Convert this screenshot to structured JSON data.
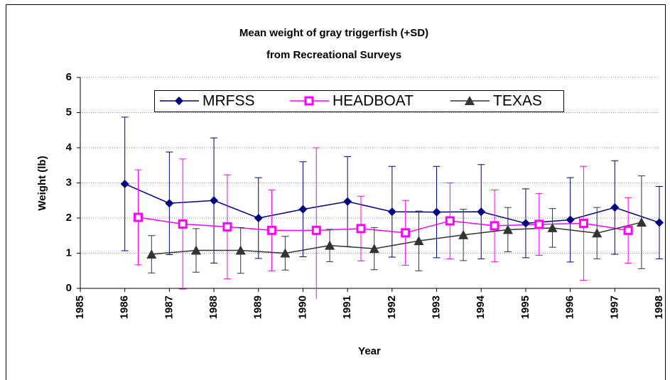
{
  "chart_data": {
    "type": "line",
    "title": "Mean weight of gray triggerfish (+SD)",
    "subtitle": "from Recreational Surveys",
    "x_label": "Year",
    "y_label": "Weight (lb)",
    "xlim": [
      1985,
      1998
    ],
    "xticks": [
      1985,
      1986,
      1987,
      1988,
      1989,
      1990,
      1991,
      1992,
      1993,
      1994,
      1995,
      1996,
      1997,
      1998
    ],
    "ylim": [
      0,
      6
    ],
    "yticks": [
      0,
      1,
      2,
      3,
      4,
      5,
      6
    ],
    "grid": true,
    "legend": "top",
    "series": [
      {
        "name": "MRFSS",
        "color": "#000080",
        "marker": "diamond",
        "x": [
          1986,
          1987,
          1988,
          1989,
          1990,
          1991,
          1992,
          1993,
          1994,
          1995,
          1996,
          1997,
          1998
        ],
        "values": [
          2.97,
          2.42,
          2.5,
          2.0,
          2.25,
          2.47,
          2.18,
          2.17,
          2.18,
          1.85,
          1.95,
          2.3,
          1.87
        ],
        "errors": [
          1.9,
          1.46,
          1.78,
          1.15,
          1.35,
          1.28,
          1.29,
          1.3,
          1.34,
          0.98,
          1.2,
          1.33,
          1.03
        ]
      },
      {
        "name": "HEADBOAT",
        "color": "#ff00ff",
        "marker": "square",
        "x": [
          1986.3,
          1987.3,
          1988.3,
          1989.3,
          1990.3,
          1991.3,
          1992.3,
          1993.3,
          1994.3,
          1995.3,
          1996.3,
          1997.3
        ],
        "values": [
          2.02,
          1.83,
          1.75,
          1.65,
          1.65,
          1.7,
          1.58,
          1.92,
          1.78,
          1.82,
          1.85,
          1.65
        ],
        "errors": [
          1.35,
          1.85,
          1.48,
          1.15,
          2.35,
          0.92,
          0.92,
          1.08,
          1.02,
          0.88,
          1.62,
          0.93
        ]
      },
      {
        "name": "TEXAS",
        "color": "#333333",
        "marker": "triangle",
        "x": [
          1986.6,
          1987.6,
          1988.6,
          1989.6,
          1990.6,
          1991.6,
          1992.6,
          1993.6,
          1994.6,
          1995.6,
          1996.6,
          1997.6
        ],
        "values": [
          0.97,
          1.08,
          1.08,
          1.0,
          1.22,
          1.13,
          1.35,
          1.52,
          1.67,
          1.72,
          1.57,
          1.88
        ],
        "errors": [
          0.53,
          0.62,
          0.65,
          0.48,
          0.46,
          0.6,
          0.85,
          0.73,
          0.63,
          0.55,
          0.73,
          1.32
        ]
      }
    ]
  }
}
